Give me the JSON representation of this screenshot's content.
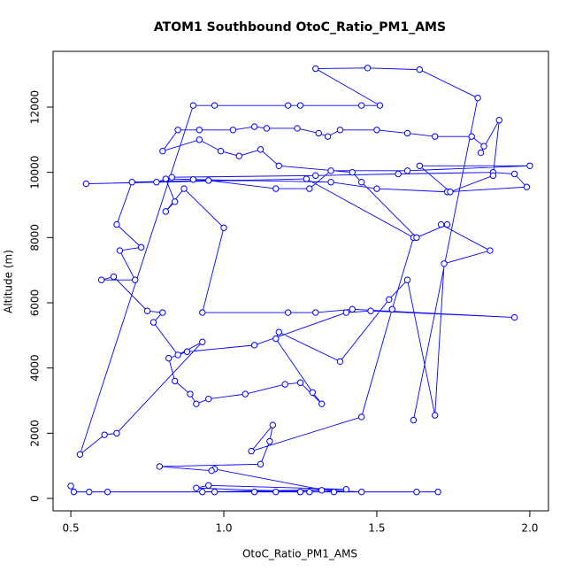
{
  "chart_data": {
    "type": "line",
    "title": "ATOM1 Southbound OtoC_Ratio_PM1_AMS",
    "x_label": "OtoC_Ratio_PM1_AMS",
    "y_label": "Altitude (m)",
    "color": "#0000ff",
    "markers": true,
    "xlim": [
      0.442,
      2.061
    ],
    "ylim": [
      -380,
      13710
    ],
    "xticks": [
      0.5,
      {
        "value": 1,
        "label": "1.0"
      },
      1.5,
      {
        "value": 2,
        "label": "2.0"
      }
    ],
    "yticks": [
      0,
      2000,
      4000,
      6000,
      8000,
      10000,
      12000
    ],
    "x": [
      0.5,
      0.51,
      0.56,
      0.62,
      1.63,
      1.7,
      1.45,
      1.32,
      0.97,
      0.93,
      1.4,
      0.95,
      0.91,
      1.25,
      1.1,
      1.17,
      1.28,
      1.36,
      0.97,
      0.96,
      0.79,
      1.12,
      1.15,
      1.16,
      1.09,
      1.45,
      1.55,
      1.62,
      1.27,
      0.55,
      0.78,
      0.83,
      1.3,
      1.57,
      1.88,
      1.95,
      1.99,
      1.73,
      1.5,
      1.35,
      0.9,
      0.81,
      0.84,
      0.81,
      0.87,
      1.0,
      0.93,
      1.21,
      1.3,
      1.42,
      1.95,
      1.48,
      1.4,
      1.1,
      0.88,
      0.82,
      0.84,
      0.89,
      0.91,
      0.95,
      1.07,
      1.2,
      1.25,
      1.32,
      1.29,
      1.17,
      1.18,
      1.38,
      1.54,
      1.6,
      1.69,
      1.72,
      1.87,
      1.71,
      1.73,
      1.63,
      1.45,
      1.42,
      1.18,
      1.12,
      1.05,
      0.99,
      0.92,
      0.8,
      0.85,
      0.92,
      1.03,
      1.1,
      1.14,
      1.24,
      1.31,
      1.34,
      1.38,
      1.5,
      1.6,
      1.69,
      1.81,
      1.85,
      1.84,
      1.9,
      1.88,
      1.74,
      1.64,
      2.0,
      1.6,
      1.35,
      1.28,
      1.17,
      0.95,
      0.7,
      0.65,
      0.73,
      0.66,
      0.71,
      0.6,
      0.64,
      0.75,
      0.8,
      0.77,
      0.85,
      0.93,
      0.65,
      0.61,
      0.53,
      0.9,
      0.97,
      1.21,
      1.25,
      1.45,
      1.51,
      1.3,
      1.47,
      1.64,
      1.83,
      1.62
    ],
    "values": [
      380,
      200,
      200,
      200,
      200,
      200,
      200,
      250,
      200,
      200,
      280,
      400,
      320,
      200,
      200,
      200,
      200,
      200,
      900,
      850,
      980,
      1050,
      1750,
      2250,
      1450,
      2500,
      5800,
      8000,
      9800,
      9650,
      9700,
      9850,
      9900,
      9950,
      10000,
      9950,
      9550,
      9400,
      9500,
      9700,
      9780,
      9800,
      9100,
      8800,
      9500,
      8300,
      5700,
      5700,
      5700,
      5800,
      5550,
      5750,
      5700,
      4700,
      4500,
      4300,
      3600,
      3200,
      2900,
      3050,
      3200,
      3500,
      3550,
      2900,
      3250,
      4900,
      5100,
      4200,
      6100,
      6700,
      2550,
      7200,
      7600,
      8400,
      8400,
      8000,
      9700,
      10000,
      10200,
      10700,
      10500,
      10650,
      11000,
      10650,
      11300,
      11300,
      11300,
      11400,
      11350,
      11350,
      11200,
      11100,
      11300,
      11300,
      11200,
      11100,
      11100,
      10800,
      10600,
      11600,
      9900,
      9400,
      10200,
      10200,
      10050,
      10050,
      9500,
      9500,
      9750,
      9700,
      8400,
      7700,
      7600,
      6700,
      6700,
      6800,
      5750,
      5700,
      5400,
      4400,
      4800,
      2000,
      1950,
      1350,
      12050,
      12050,
      12050,
      12050,
      12050,
      12050,
      13180,
      13200,
      13150,
      12280,
      2400
    ]
  }
}
